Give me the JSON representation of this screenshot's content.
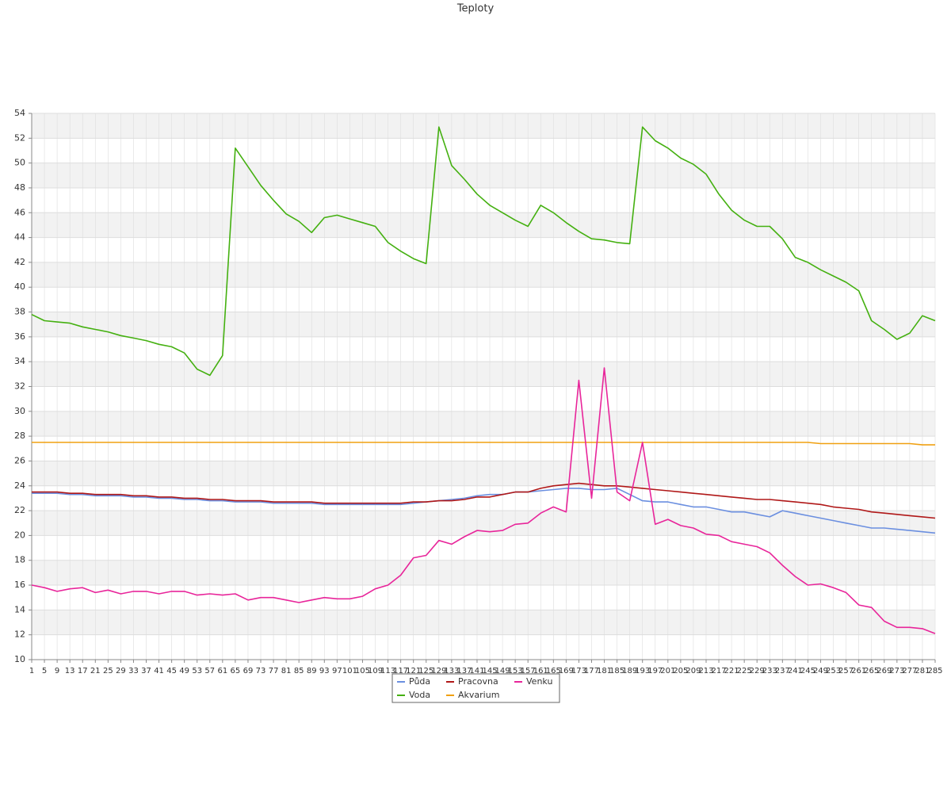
{
  "chart_data": {
    "type": "line",
    "title": "Teploty",
    "categories": [
      1,
      5,
      9,
      13,
      17,
      21,
      25,
      29,
      33,
      37,
      41,
      45,
      49,
      53,
      57,
      61,
      65,
      69,
      73,
      77,
      81,
      85,
      89,
      93,
      97,
      101,
      105,
      109,
      113,
      117,
      121,
      125,
      129,
      133,
      137,
      141,
      145,
      149,
      153,
      157,
      161,
      165,
      169,
      173,
      177,
      181,
      185,
      189,
      193,
      197,
      201,
      205,
      209,
      213,
      217,
      221,
      225,
      229,
      233,
      237,
      241,
      245,
      249,
      253,
      257,
      261,
      265,
      269,
      273,
      277,
      281,
      285
    ],
    "ylim": [
      10,
      54
    ],
    "yticks": [
      10,
      12,
      14,
      16,
      18,
      20,
      22,
      24,
      26,
      28,
      30,
      32,
      34,
      36,
      38,
      40,
      42,
      44,
      46,
      48,
      50,
      52,
      54
    ],
    "grid": true,
    "legend": "bottom",
    "series": [
      {
        "name": "Půda",
        "color": "#6b8fe0",
        "values": [
          23.4,
          23.4,
          23.4,
          23.3,
          23.3,
          23.2,
          23.2,
          23.2,
          23.1,
          23.1,
          23,
          23,
          22.9,
          22.9,
          22.8,
          22.8,
          22.7,
          22.7,
          22.7,
          22.6,
          22.6,
          22.6,
          22.6,
          22.5,
          22.5,
          22.5,
          22.5,
          22.5,
          22.5,
          22.5,
          22.6,
          22.7,
          22.8,
          22.9,
          23,
          23.2,
          23.3,
          23.3,
          23.5,
          23.5,
          23.6,
          23.7,
          23.8,
          23.8,
          23.7,
          23.7,
          23.8,
          23.3,
          22.8,
          22.7,
          22.7,
          22.5,
          22.3,
          22.3,
          22.1,
          21.9,
          21.9,
          21.7,
          21.5,
          22,
          21.8,
          21.6,
          21.4,
          21.2,
          21,
          20.8,
          20.6,
          20.6,
          20.5,
          20.4,
          20.3,
          20.2
        ]
      },
      {
        "name": "Voda",
        "color": "#44b010",
        "values": [
          37.8,
          37.3,
          37.2,
          37.1,
          36.8,
          36.6,
          36.4,
          36.1,
          35.9,
          35.7,
          35.4,
          35.2,
          34.7,
          33.4,
          32.9,
          34.5,
          51.2,
          49.7,
          48.2,
          47,
          45.9,
          45.3,
          44.4,
          45.6,
          45.8,
          45.5,
          45.2,
          44.9,
          43.6,
          42.9,
          42.3,
          41.9,
          52.9,
          49.8,
          48.7,
          47.5,
          46.6,
          46,
          45.4,
          44.9,
          46.6,
          46,
          45.2,
          44.5,
          43.9,
          43.8,
          43.6,
          43.5,
          52.9,
          51.8,
          51.2,
          50.4,
          49.9,
          49.1,
          47.5,
          46.2,
          45.4,
          44.9,
          44.9,
          43.9,
          42.4,
          42,
          41.4,
          40.9,
          40.4,
          39.7,
          37.3,
          36.6,
          35.8,
          36.3,
          37.7,
          37.3
        ]
      },
      {
        "name": "Pracovna",
        "color": "#b01818",
        "values": [
          23.5,
          23.5,
          23.5,
          23.4,
          23.4,
          23.3,
          23.3,
          23.3,
          23.2,
          23.2,
          23.1,
          23.1,
          23,
          23,
          22.9,
          22.9,
          22.8,
          22.8,
          22.8,
          22.7,
          22.7,
          22.7,
          22.7,
          22.6,
          22.6,
          22.6,
          22.6,
          22.6,
          22.6,
          22.6,
          22.7,
          22.7,
          22.8,
          22.8,
          22.9,
          23.1,
          23.1,
          23.3,
          23.5,
          23.5,
          23.8,
          24,
          24.1,
          24.2,
          24.1,
          24,
          24,
          23.9,
          23.8,
          23.7,
          23.6,
          23.5,
          23.4,
          23.3,
          23.2,
          23.1,
          23,
          22.9,
          22.9,
          22.8,
          22.7,
          22.6,
          22.5,
          22.3,
          22.2,
          22.1,
          21.9,
          21.8,
          21.7,
          21.6,
          21.5,
          21.4
        ]
      },
      {
        "name": "Akvarium",
        "color": "#f0a010",
        "values": [
          27.5,
          27.5,
          27.5,
          27.5,
          27.5,
          27.5,
          27.5,
          27.5,
          27.5,
          27.5,
          27.5,
          27.5,
          27.5,
          27.5,
          27.5,
          27.5,
          27.5,
          27.5,
          27.5,
          27.5,
          27.5,
          27.5,
          27.5,
          27.5,
          27.5,
          27.5,
          27.5,
          27.5,
          27.5,
          27.5,
          27.5,
          27.5,
          27.5,
          27.5,
          27.5,
          27.5,
          27.5,
          27.5,
          27.5,
          27.5,
          27.5,
          27.5,
          27.5,
          27.5,
          27.5,
          27.5,
          27.5,
          27.5,
          27.5,
          27.5,
          27.5,
          27.5,
          27.5,
          27.5,
          27.5,
          27.5,
          27.5,
          27.5,
          27.5,
          27.5,
          27.5,
          27.5,
          27.4,
          27.4,
          27.4,
          27.4,
          27.4,
          27.4,
          27.4,
          27.4,
          27.3,
          27.3
        ]
      },
      {
        "name": "Venku",
        "color": "#e8259a",
        "values": [
          16,
          15.8,
          15.5,
          15.7,
          15.8,
          15.4,
          15.6,
          15.3,
          15.5,
          15.5,
          15.3,
          15.5,
          15.5,
          15.2,
          15.3,
          15.2,
          15.3,
          14.8,
          15,
          15,
          14.8,
          14.6,
          14.8,
          15,
          14.9,
          14.9,
          15.1,
          15.7,
          16,
          16.8,
          18.2,
          18.4,
          19.6,
          19.3,
          19.9,
          20.4,
          20.3,
          20.4,
          20.9,
          21,
          21.8,
          22.3,
          21.9,
          32.5,
          23,
          33.5,
          23.5,
          22.8,
          27.5,
          20.9,
          21.3,
          20.8,
          20.6,
          20.1,
          20,
          19.5,
          19.3,
          19.1,
          18.6,
          17.6,
          16.7,
          16,
          16.1,
          15.8,
          15.4,
          14.4,
          14.2,
          13.1,
          12.6,
          12.6,
          12.5,
          12.1
        ]
      }
    ]
  }
}
